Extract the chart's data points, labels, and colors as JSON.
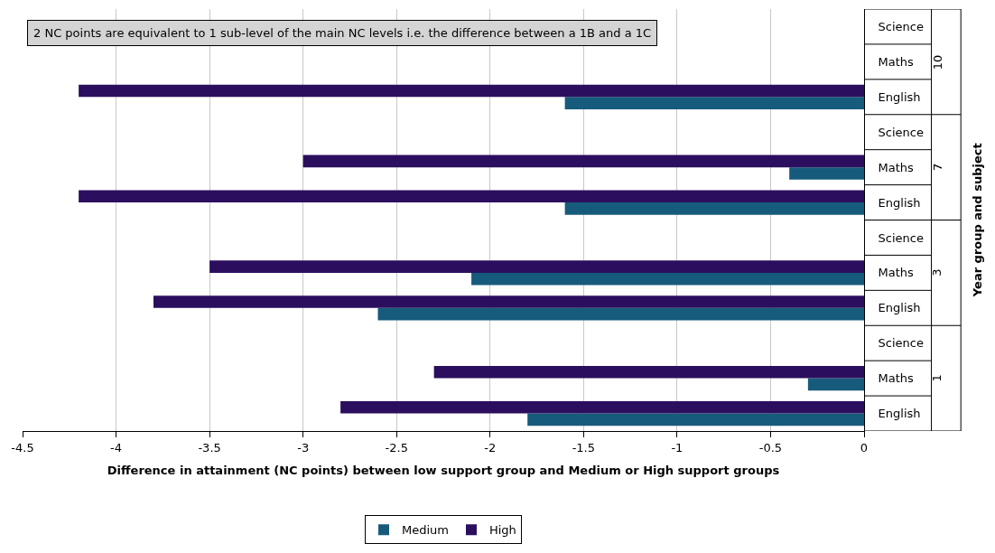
{
  "chart_data": {
    "type": "bar",
    "orientation": "horizontal",
    "xlabel": "Difference in attainment (NC points) between low support group and Medium or High support groups",
    "ylabel": "Year group and subject",
    "categories": [
      "Science",
      "Maths",
      "English",
      "Science",
      "Maths",
      "English",
      "Science",
      "Maths",
      "English",
      "Science",
      "Maths",
      "English"
    ],
    "series": [
      {
        "name": "Medium",
        "color": "#175b7c",
        "values": [
          null,
          null,
          -1.6,
          null,
          -0.4,
          -1.6,
          null,
          -2.1,
          -2.6,
          null,
          -0.3,
          -1.8
        ]
      },
      {
        "name": "High",
        "color": "#2b0f5e",
        "values": [
          null,
          null,
          -4.2,
          null,
          -3.0,
          -4.2,
          null,
          -3.5,
          -3.8,
          null,
          -2.3,
          -2.8
        ]
      }
    ],
    "xlim": [
      -4.5,
      0
    ],
    "xticks": [
      -4.5,
      -4,
      -3.5,
      -3,
      -2.5,
      -2,
      -1.5,
      -1,
      -0.5,
      0
    ],
    "grid": "x",
    "legend": "bottom",
    "annotations": [
      "2 NC points are equivalent to 1 sub-level of the main NC levels i.e. the difference between a 1B and a 1C",
      "10",
      "7",
      "3",
      "1"
    ]
  }
}
